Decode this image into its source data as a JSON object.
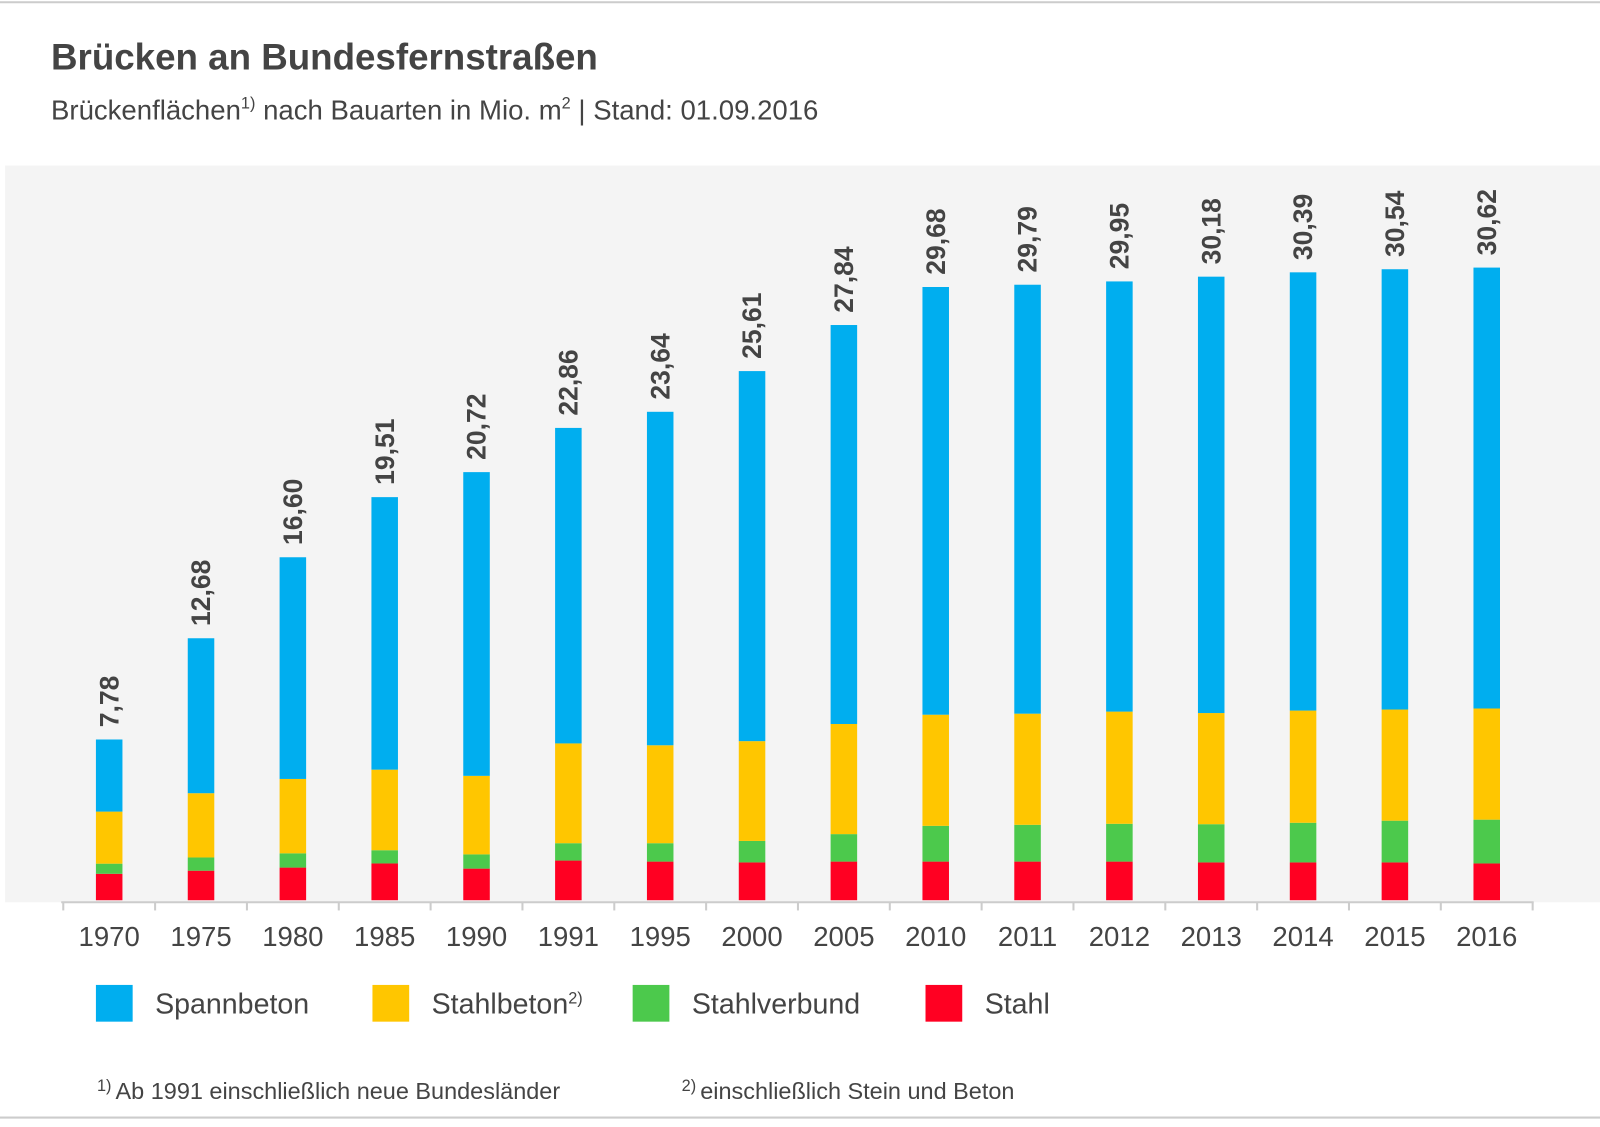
{
  "chart_data": {
    "type": "stacked-bar",
    "title": "Brücken an Bundesfernstraßen",
    "subtitle": [
      "Brückenflächen",
      "1)",
      " nach Bauarten in Mio. m",
      "2",
      "  |  Stand: 01.09.2016"
    ],
    "categories": [
      "1970",
      "1975",
      "1980",
      "1985",
      "1990",
      "1991",
      "1995",
      "2000",
      "2005",
      "2010",
      "2011",
      "2012",
      "2013",
      "2014",
      "2015",
      "2016"
    ],
    "series": [
      {
        "name": "Spannbeton",
        "color": "#00aeef",
        "values": [
          3.49,
          7.5,
          10.73,
          13.19,
          14.7,
          15.27,
          16.14,
          17.91,
          19.31,
          20.7,
          20.76,
          20.82,
          21.12,
          21.21,
          21.31,
          21.34
        ]
      },
      {
        "name": "Stahlbeton",
        "name_sup": "2)",
        "color": "#ffc600",
        "values": [
          2.52,
          3.11,
          3.6,
          3.9,
          3.8,
          4.83,
          4.74,
          4.83,
          5.33,
          5.38,
          5.38,
          5.43,
          5.38,
          5.43,
          5.38,
          5.38
        ]
      },
      {
        "name": "Stahlverbund",
        "color": "#4cc94c",
        "values": [
          0.49,
          0.64,
          0.69,
          0.64,
          0.69,
          0.84,
          0.89,
          1.04,
          1.33,
          1.73,
          1.78,
          1.83,
          1.85,
          1.92,
          2.02,
          2.12
        ]
      },
      {
        "name": "Stahl",
        "color": "#ff0022",
        "values": [
          1.28,
          1.43,
          1.58,
          1.78,
          1.53,
          1.92,
          1.87,
          1.83,
          1.87,
          1.87,
          1.87,
          1.87,
          1.83,
          1.83,
          1.83,
          1.78
        ]
      }
    ],
    "totals": [
      7.78,
      12.68,
      16.6,
      19.51,
      20.72,
      22.86,
      23.64,
      25.61,
      27.84,
      29.68,
      29.79,
      29.95,
      30.18,
      30.39,
      30.54,
      30.62
    ],
    "total_labels": [
      "7,78",
      "12,68",
      "16,60",
      "19,51",
      "20,72",
      "22,86",
      "23,64",
      "25,61",
      "27,84",
      "29,68",
      "29,79",
      "29,95",
      "30,18",
      "30,39",
      "30,54",
      "30,62"
    ],
    "footnotes": [
      {
        "mark": "1)",
        "text": "Ab 1991 einschließlich neue Bundesländer"
      },
      {
        "mark": "2)",
        "text": "einschließlich Stein und Beton"
      }
    ]
  }
}
